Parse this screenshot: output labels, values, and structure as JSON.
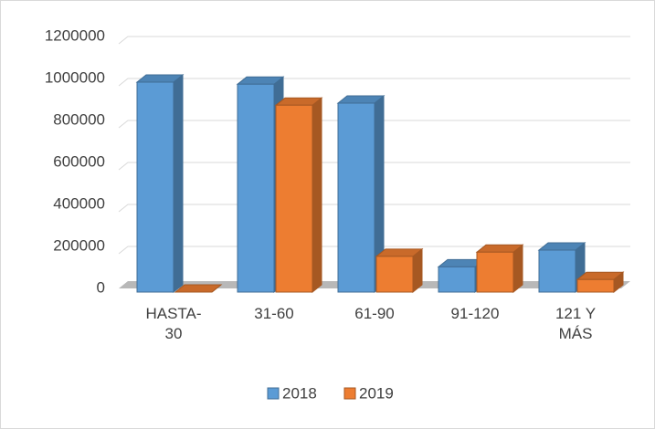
{
  "chart_data": {
    "type": "bar3d",
    "categories": [
      "HASTA-30",
      "31-60",
      "61-90",
      "91-120",
      "121 Y MÁS"
    ],
    "series": [
      {
        "name": "2018",
        "color": "#5b9bd5",
        "values": [
          1000000,
          990000,
          900000,
          120000,
          200000
        ]
      },
      {
        "name": "2019",
        "color": "#ed7d31",
        "values": [
          0,
          890000,
          170000,
          190000,
          60000
        ]
      }
    ],
    "ylim": [
      0,
      1200000
    ],
    "yticks": [
      0,
      200000,
      400000,
      600000,
      800000,
      1000000,
      1200000
    ],
    "grid": true,
    "legend": "bottom"
  }
}
